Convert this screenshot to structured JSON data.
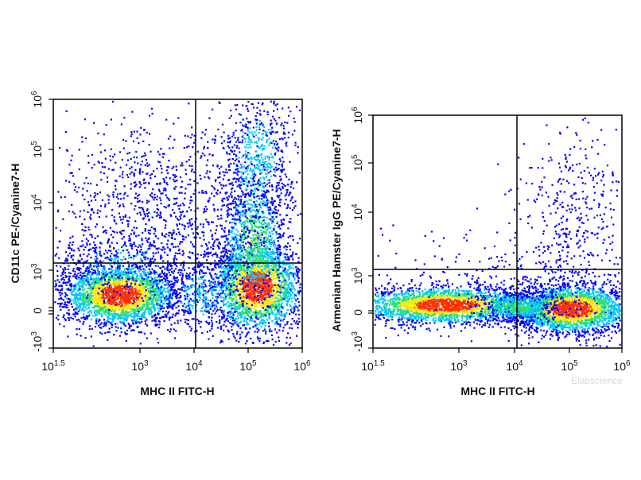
{
  "colors": {
    "density_low": "#0000ff",
    "density_mid1": "#00c8ff",
    "density_mid2": "#28e07a",
    "density_mid3": "#ffe800",
    "density_high": "#ff3000",
    "gate_line": "#000000"
  },
  "watermark": "Elabscience",
  "chart_data": [
    {
      "type": "scatter",
      "style": "pseudocolor density dot plot",
      "xlabel": "MHC II FITC-H",
      "ylabel": "CD11c PE-/Cyanine7-H",
      "x_scale": "biexponential",
      "y_scale": "biexponential",
      "x_ticks": [
        "10^1.5",
        "10^3",
        "10^4",
        "10^5",
        "10^6"
      ],
      "y_ticks": [
        "-10^3",
        "0",
        "10^3",
        "10^4",
        "10^5",
        "10^6"
      ],
      "quadrant_gate": {
        "x": 12000,
        "y": 1300
      },
      "populations": [
        {
          "name": "",
          "x_center": 500,
          "y_center": 300,
          "density": "high"
        },
        {
          "name": "",
          "x_center": 150000,
          "y_center": 400,
          "density": "high"
        },
        {
          "name": "",
          "x_center": 150000,
          "y_center": 20000,
          "density": "medium"
        },
        {
          "name": "",
          "x_center": 3000,
          "y_center": 10000,
          "density": "low"
        }
      ]
    },
    {
      "type": "scatter",
      "style": "pseudocolor density dot plot",
      "xlabel": "MHC II FITC-H",
      "ylabel": "Armenian Hamster IgG PE/Cyanine7-H",
      "x_scale": "biexponential",
      "y_scale": "biexponential",
      "x_ticks": [
        "10^1.5",
        "10^3",
        "10^4",
        "10^5",
        "10^6"
      ],
      "y_ticks": [
        "-10^3",
        "0",
        "10^3",
        "10^4",
        "10^5",
        "10^6"
      ],
      "quadrant_gate": {
        "x": 12000,
        "y": 1300
      },
      "populations": [
        {
          "name": "",
          "x_center": 600,
          "y_center": 100,
          "density": "high"
        },
        {
          "name": "",
          "x_center": 100000,
          "y_center": 100,
          "density": "high"
        },
        {
          "name": "",
          "x_center": 80000,
          "y_center": 20000,
          "density": "low"
        }
      ]
    }
  ]
}
